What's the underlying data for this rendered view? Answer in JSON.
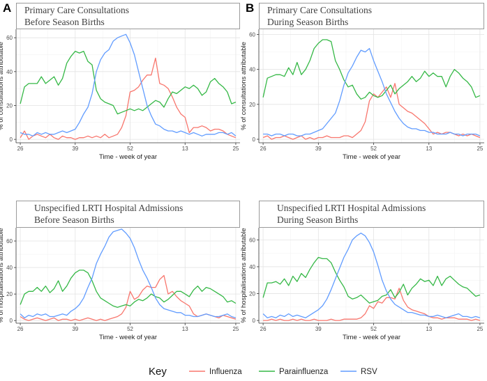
{
  "key": {
    "title": "Key",
    "entries": [
      {
        "name": "Influenza",
        "color": "#F8766D"
      },
      {
        "name": "Parainfluenza",
        "color": "#35B846"
      },
      {
        "name": "RSV",
        "color": "#619CFF"
      }
    ]
  },
  "chart_data": [
    {
      "type": "line",
      "panel_letter": "A",
      "title": "Primary Care Consultations\nBefore Season Births",
      "xlabel": "Time - week of year",
      "ylabel": "% of consultations attributable",
      "x_tick_labels": [
        "26",
        "39",
        "52",
        "13",
        "25"
      ],
      "x_tick_positions": [
        0,
        13,
        26,
        39,
        51
      ],
      "xlim": [
        -1,
        52
      ],
      "ylim": [
        -2,
        65
      ],
      "y_ticks": [
        0,
        20,
        40,
        60
      ],
      "series": [
        {
          "name": "Influenza",
          "values": [
            1,
            5,
            0,
            2,
            3,
            2,
            1,
            3,
            1,
            0,
            2,
            1,
            1,
            0,
            1,
            1,
            2,
            1,
            2,
            1,
            3,
            1,
            2,
            3,
            7,
            14,
            28,
            29,
            31,
            35,
            38,
            38,
            48,
            33,
            32,
            30,
            25,
            19,
            15,
            13,
            4,
            7,
            7,
            8,
            7,
            5,
            6,
            6,
            5,
            3,
            2,
            1
          ]
        },
        {
          "name": "Parainfluenza",
          "values": [
            21,
            31,
            33,
            33,
            33,
            37,
            33,
            35,
            37,
            32,
            36,
            45,
            49,
            52,
            51,
            52,
            46,
            44,
            29,
            24,
            22,
            21,
            20,
            15,
            16,
            17,
            18,
            17,
            18,
            17,
            19,
            21,
            23,
            22,
            19,
            24,
            28,
            27,
            29,
            31,
            30,
            32,
            30,
            26,
            28,
            34,
            36,
            33,
            31,
            28,
            21,
            22
          ]
        },
        {
          "name": "RSV",
          "values": [
            4,
            3,
            3,
            2,
            4,
            3,
            4,
            3,
            3,
            4,
            5,
            4,
            5,
            6,
            10,
            15,
            19,
            27,
            40,
            47,
            51,
            53,
            58,
            60,
            61,
            62,
            57,
            50,
            40,
            30,
            20,
            14,
            9,
            8,
            6,
            5,
            5,
            4,
            5,
            4,
            3,
            4,
            3,
            2,
            3,
            3,
            3,
            4,
            4,
            3,
            4,
            2
          ]
        }
      ]
    },
    {
      "type": "line",
      "panel_letter": "B",
      "title": "Primary Care Consultations\nDuring Season Births",
      "xlabel": "Time - week of year",
      "ylabel": "% of consultations attributable",
      "x_tick_labels": [
        "26",
        "39",
        "52",
        "13",
        "25"
      ],
      "x_tick_positions": [
        0,
        13,
        26,
        39,
        51
      ],
      "xlim": [
        -1,
        52
      ],
      "ylim": [
        -2,
        63
      ],
      "y_ticks": [
        0,
        20,
        40,
        60
      ],
      "series": [
        {
          "name": "Influenza",
          "values": [
            1,
            2,
            0,
            1,
            1,
            2,
            1,
            0,
            1,
            2,
            0,
            1,
            0,
            1,
            1,
            2,
            1,
            1,
            1,
            2,
            2,
            1,
            3,
            5,
            10,
            22,
            26,
            24,
            27,
            30,
            24,
            32,
            20,
            18,
            16,
            15,
            13,
            11,
            9,
            6,
            3,
            4,
            3,
            4,
            4,
            3,
            2,
            3,
            2,
            3,
            2,
            1
          ]
        },
        {
          "name": "Parainfluenza",
          "values": [
            24,
            35,
            36,
            37,
            37,
            36,
            41,
            37,
            44,
            37,
            40,
            45,
            52,
            55,
            57,
            57,
            56,
            45,
            40,
            34,
            30,
            31,
            26,
            23,
            24,
            27,
            25,
            24,
            25,
            28,
            31,
            26,
            29,
            31,
            33,
            36,
            33,
            35,
            39,
            36,
            38,
            36,
            36,
            30,
            36,
            40,
            38,
            35,
            33,
            30,
            24,
            25
          ]
        },
        {
          "name": "RSV",
          "values": [
            3,
            3,
            2,
            3,
            3,
            2,
            3,
            3,
            2,
            2,
            3,
            3,
            4,
            5,
            6,
            9,
            12,
            15,
            22,
            31,
            38,
            42,
            47,
            51,
            50,
            52,
            45,
            39,
            33,
            26,
            21,
            16,
            12,
            9,
            7,
            6,
            6,
            5,
            5,
            4,
            4,
            3,
            3,
            3,
            4,
            3,
            3,
            2,
            3,
            3,
            3,
            2
          ]
        }
      ]
    },
    {
      "type": "line",
      "panel_letter": "",
      "title": "Unspecified LRTI Hospital Admissions\nBefore Season Births",
      "xlabel": "Time - week of year",
      "ylabel": "% of hospitalisations attributable",
      "x_tick_labels": [
        "26",
        "39",
        "52",
        "13",
        "25"
      ],
      "x_tick_positions": [
        0,
        13,
        26,
        39,
        51
      ],
      "xlim": [
        -1,
        52
      ],
      "ylim": [
        -2,
        70
      ],
      "y_ticks": [
        0,
        20,
        40,
        60
      ],
      "series": [
        {
          "name": "Influenza",
          "values": [
            3,
            1,
            0,
            1,
            2,
            1,
            0,
            1,
            2,
            0,
            1,
            1,
            0,
            1,
            0,
            1,
            2,
            1,
            0,
            1,
            0,
            1,
            2,
            3,
            5,
            10,
            22,
            16,
            18,
            23,
            26,
            25,
            25,
            31,
            34,
            20,
            22,
            18,
            15,
            13,
            11,
            5,
            3,
            4,
            5,
            4,
            3,
            2,
            4,
            3,
            2,
            1
          ]
        },
        {
          "name": "Parainfluenza",
          "values": [
            12,
            20,
            22,
            22,
            25,
            22,
            26,
            21,
            24,
            30,
            22,
            26,
            32,
            36,
            38,
            38,
            36,
            30,
            22,
            17,
            15,
            13,
            11,
            10,
            11,
            12,
            11,
            14,
            16,
            15,
            17,
            20,
            18,
            17,
            14,
            16,
            19,
            22,
            22,
            20,
            18,
            23,
            26,
            22,
            25,
            24,
            22,
            20,
            18,
            14,
            15,
            13
          ]
        },
        {
          "name": "RSV",
          "values": [
            5,
            2,
            4,
            3,
            5,
            4,
            5,
            3,
            3,
            4,
            5,
            4,
            7,
            9,
            12,
            17,
            25,
            32,
            43,
            50,
            56,
            63,
            67,
            68,
            69,
            66,
            62,
            55,
            46,
            38,
            32,
            25,
            17,
            12,
            9,
            8,
            7,
            6,
            6,
            4,
            4,
            3,
            3,
            4,
            5,
            4,
            3,
            3,
            4,
            5,
            3,
            2
          ]
        }
      ]
    },
    {
      "type": "line",
      "panel_letter": "",
      "title": "Unspecified LRTI Hospital Admissions\nDuring Season Births",
      "xlabel": "Time - week of year",
      "ylabel": "% of hospitalisations attributable",
      "x_tick_labels": [
        "26",
        "39",
        "52",
        "13",
        "25"
      ],
      "x_tick_positions": [
        0,
        13,
        26,
        39,
        51
      ],
      "xlim": [
        -1,
        52
      ],
      "ylim": [
        -2,
        69
      ],
      "y_ticks": [
        0,
        20,
        40,
        60
      ],
      "series": [
        {
          "name": "Influenza",
          "values": [
            0,
            0,
            1,
            0,
            1,
            0,
            0,
            1,
            0,
            1,
            0,
            0,
            1,
            0,
            0,
            0,
            1,
            0,
            0,
            1,
            1,
            1,
            1,
            2,
            5,
            11,
            9,
            14,
            13,
            17,
            17,
            16,
            24,
            15,
            10,
            8,
            7,
            6,
            5,
            3,
            2,
            2,
            1,
            2,
            2,
            2,
            1,
            1,
            1,
            0,
            1,
            0
          ]
        },
        {
          "name": "Parainfluenza",
          "values": [
            17,
            28,
            28,
            29,
            27,
            31,
            26,
            33,
            29,
            35,
            32,
            38,
            43,
            47,
            46,
            46,
            43,
            36,
            30,
            25,
            18,
            16,
            17,
            19,
            16,
            13,
            14,
            15,
            18,
            19,
            23,
            17,
            21,
            27,
            19,
            24,
            27,
            31,
            29,
            30,
            26,
            33,
            26,
            31,
            33,
            30,
            27,
            25,
            24,
            21,
            18,
            19
          ]
        },
        {
          "name": "RSV",
          "values": [
            5,
            2,
            3,
            2,
            4,
            3,
            5,
            3,
            4,
            3,
            2,
            4,
            6,
            8,
            11,
            16,
            23,
            31,
            39,
            47,
            53,
            60,
            63,
            65,
            63,
            58,
            51,
            41,
            30,
            22,
            16,
            12,
            10,
            8,
            6,
            6,
            5,
            4,
            4,
            3,
            3,
            4,
            3,
            2,
            3,
            4,
            5,
            3,
            3,
            2,
            3,
            2
          ]
        }
      ]
    }
  ]
}
